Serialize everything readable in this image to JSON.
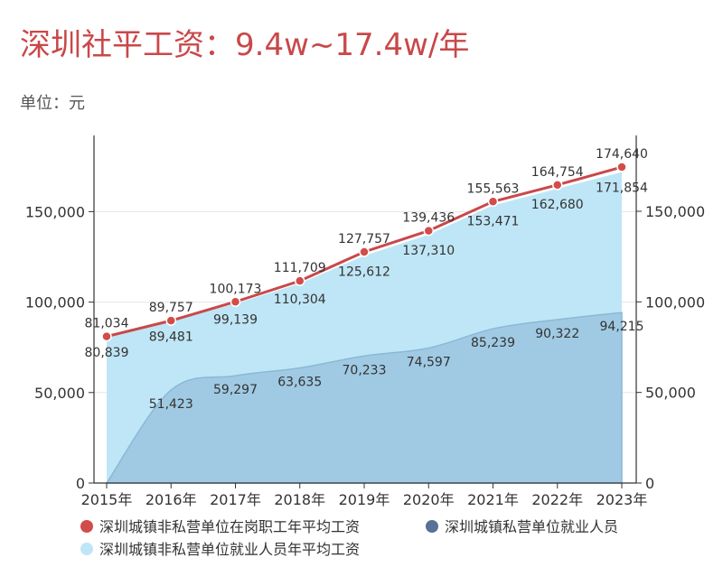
{
  "header": {
    "title": "深圳社平工资：9.4w~17.4w/年",
    "unit": "单位：元"
  },
  "chart_data": {
    "type": "line",
    "categories": [
      "2015年",
      "2016年",
      "2017年",
      "2018年",
      "2019年",
      "2020年",
      "2021年",
      "2022年",
      "2023年"
    ],
    "series": [
      {
        "name": "深圳城镇非私营单位在岗职工年平均工资",
        "kind": "line",
        "color": "#c9484a",
        "values": [
          81034,
          89757,
          100173,
          111709,
          127757,
          139436,
          155563,
          164754,
          174640
        ],
        "labels": [
          "81,034",
          "89,757",
          "100,173",
          "111,709",
          "127,757",
          "139,436",
          "155,563",
          "164,754",
          "174,640"
        ]
      },
      {
        "name": "深圳城镇非私营单位就业人员年平均工资",
        "kind": "area",
        "color": "#bfe6f6",
        "values": [
          80839,
          89481,
          99139,
          110304,
          125612,
          137310,
          153471,
          162680,
          171854
        ],
        "labels": [
          "80,839",
          "89,481",
          "99,139",
          "110,304",
          "125,612",
          "137,310",
          "153,471",
          "162,680",
          "171,854"
        ]
      },
      {
        "name": "深圳城镇私营单位就业人员",
        "kind": "area",
        "color": "#9ec8e1",
        "values": [
          0,
          51423,
          59297,
          63635,
          70233,
          74597,
          85239,
          90322,
          94215
        ],
        "labels": [
          "",
          "51,423",
          "59,297",
          "63,635",
          "70,233",
          "74,597",
          "85,239",
          "90,322",
          "94,215"
        ]
      }
    ],
    "legend_order": [
      0,
      2,
      1
    ],
    "legend_colors": [
      "#d24c4a",
      "#5b7096",
      "#bfe6f6"
    ],
    "y_left": {
      "min": 0,
      "max": 150000,
      "ticks": [
        0,
        50000,
        100000,
        150000
      ],
      "tick_labels": [
        "0",
        "50,000",
        "100,000",
        "150,000"
      ]
    },
    "y_right": {
      "min": 0,
      "max": 150000,
      "ticks": [
        0,
        50000,
        100000,
        150000
      ],
      "tick_labels": [
        "0",
        "50,000",
        "100,000",
        "150,000"
      ]
    },
    "grid": true,
    "legend_position": "bottom"
  }
}
